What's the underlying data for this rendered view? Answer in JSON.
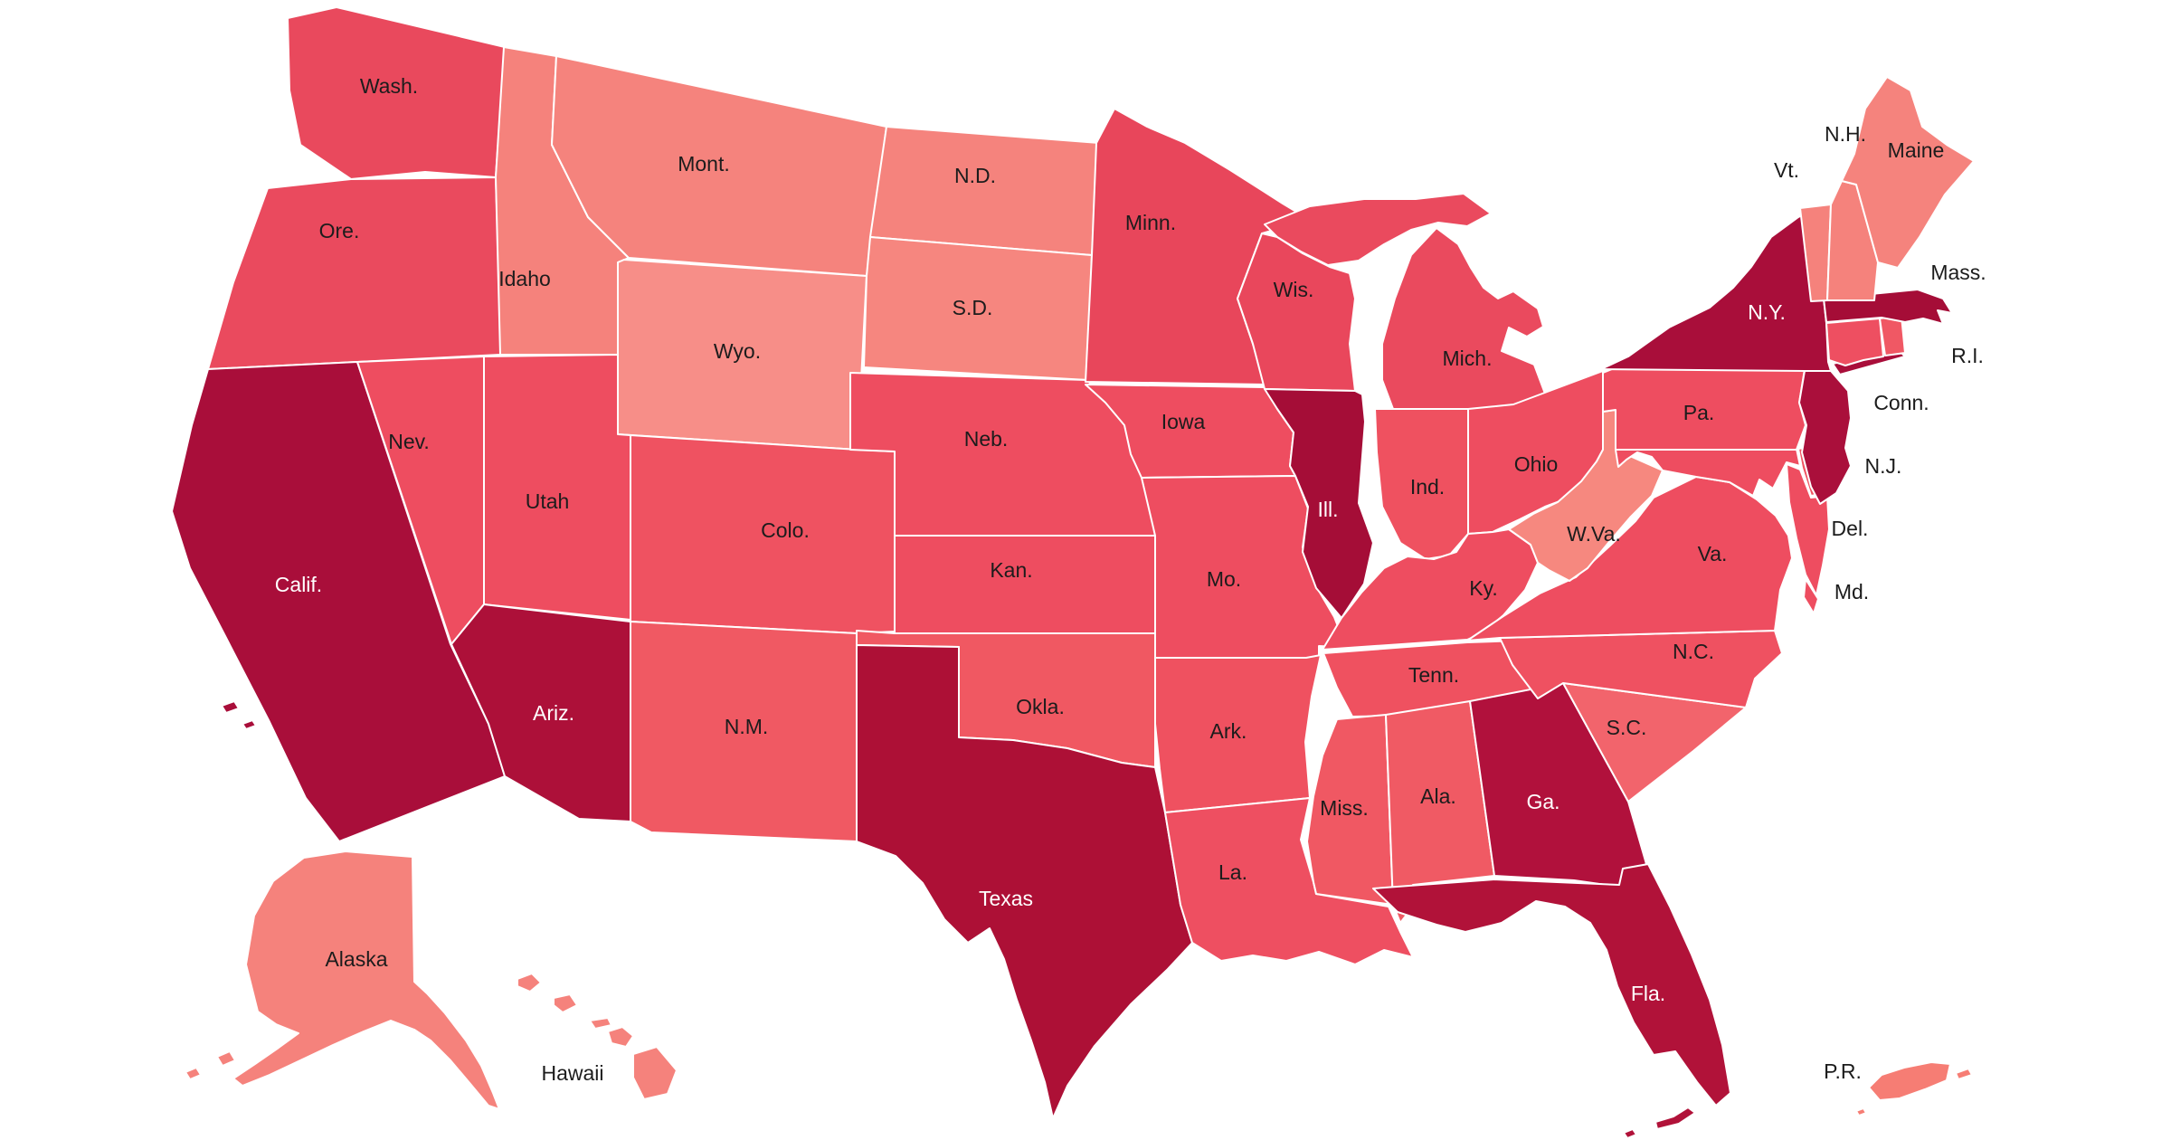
{
  "map": {
    "description": "United States choropleth map with state abbreviations",
    "background": "#ffffff",
    "state_border_color": "#ffffff",
    "shade_scale": {
      "lightest": "#f5827c",
      "medium": "#ee4d60",
      "darkest": "#ad1036"
    },
    "states": [
      {
        "id": "washington",
        "label": "Wash.",
        "fill": "#e9495d",
        "label_color": "#1c1c1c"
      },
      {
        "id": "oregon",
        "label": "Ore.",
        "fill": "#ea4a5e",
        "label_color": "#1c1c1c"
      },
      {
        "id": "california",
        "label": "Calif.",
        "fill": "#a90e3a",
        "label_color": "#ffffff"
      },
      {
        "id": "nevada",
        "label": "Nev.",
        "fill": "#ee4d60",
        "label_color": "#1c1c1c"
      },
      {
        "id": "idaho",
        "label": "Idaho",
        "fill": "#f5827c",
        "label_color": "#1c1c1c"
      },
      {
        "id": "montana",
        "label": "Mont.",
        "fill": "#f5837d",
        "label_color": "#1c1c1c"
      },
      {
        "id": "wyoming",
        "label": "Wyo.",
        "fill": "#f78e88",
        "label_color": "#1c1c1c"
      },
      {
        "id": "utah",
        "label": "Utah",
        "fill": "#ee4d60",
        "label_color": "#1c1c1c"
      },
      {
        "id": "colorado",
        "label": "Colo.",
        "fill": "#ef5261",
        "label_color": "#1c1c1c"
      },
      {
        "id": "arizona",
        "label": "Ariz.",
        "fill": "#ad1039",
        "label_color": "#ffffff"
      },
      {
        "id": "new-mexico",
        "label": "N.M.",
        "fill": "#f05963",
        "label_color": "#1c1c1c"
      },
      {
        "id": "north-dakota",
        "label": "N.D.",
        "fill": "#f5837d",
        "label_color": "#1c1c1c"
      },
      {
        "id": "south-dakota",
        "label": "S.D.",
        "fill": "#f6867f",
        "label_color": "#1c1c1c"
      },
      {
        "id": "nebraska",
        "label": "Neb.",
        "fill": "#ee4d60",
        "label_color": "#1c1c1c"
      },
      {
        "id": "kansas",
        "label": "Kan.",
        "fill": "#ee4d60",
        "label_color": "#1c1c1c"
      },
      {
        "id": "oklahoma",
        "label": "Okla.",
        "fill": "#f05862",
        "label_color": "#1c1c1c"
      },
      {
        "id": "texas",
        "label": "Texas",
        "fill": "#ad1036",
        "label_color": "#ffffff"
      },
      {
        "id": "minnesota",
        "label": "Minn.",
        "fill": "#e8465b",
        "label_color": "#1c1c1c"
      },
      {
        "id": "iowa",
        "label": "Iowa",
        "fill": "#ee4d60",
        "label_color": "#1c1c1c"
      },
      {
        "id": "missouri",
        "label": "Mo.",
        "fill": "#ee4d60",
        "label_color": "#1c1c1c"
      },
      {
        "id": "arkansas",
        "label": "Ark.",
        "fill": "#ef5160",
        "label_color": "#1c1c1c"
      },
      {
        "id": "louisiana",
        "label": "La.",
        "fill": "#ee4f61",
        "label_color": "#1c1c1c"
      },
      {
        "id": "wisconsin",
        "label": "Wis.",
        "fill": "#e9475c",
        "label_color": "#1c1c1c"
      },
      {
        "id": "illinois",
        "label": "Ill.",
        "fill": "#a50d37",
        "label_color": "#ffffff"
      },
      {
        "id": "michigan",
        "label": "Mich.",
        "fill": "#ea4a5e",
        "label_color": "#1c1c1c"
      },
      {
        "id": "indiana",
        "label": "Ind.",
        "fill": "#ef5160",
        "label_color": "#1c1c1c"
      },
      {
        "id": "ohio",
        "label": "Ohio",
        "fill": "#ee4d60",
        "label_color": "#1c1c1c"
      },
      {
        "id": "kentucky",
        "label": "Ky.",
        "fill": "#ee4d60",
        "label_color": "#1c1c1c"
      },
      {
        "id": "tennessee",
        "label": "Tenn.",
        "fill": "#ef5160",
        "label_color": "#1c1c1c"
      },
      {
        "id": "mississippi",
        "label": "Miss.",
        "fill": "#f05863",
        "label_color": "#1c1c1c"
      },
      {
        "id": "alabama",
        "label": "Ala.",
        "fill": "#f05a64",
        "label_color": "#1c1c1c"
      },
      {
        "id": "georgia",
        "label": "Ga.",
        "fill": "#b1113c",
        "label_color": "#ffffff"
      },
      {
        "id": "florida",
        "label": "Fla.",
        "fill": "#b11239",
        "label_color": "#ffffff"
      },
      {
        "id": "south-carolina",
        "label": "S.C.",
        "fill": "#f2646c",
        "label_color": "#1c1c1c"
      },
      {
        "id": "north-carolina",
        "label": "N.C.",
        "fill": "#ef5161",
        "label_color": "#1c1c1c"
      },
      {
        "id": "virginia",
        "label": "Va.",
        "fill": "#ee4d60",
        "label_color": "#1c1c1c"
      },
      {
        "id": "west-virginia",
        "label": "W.Va.",
        "fill": "#f6887f",
        "label_color": "#1c1c1c"
      },
      {
        "id": "maryland",
        "label": "Md.",
        "fill": "#ee4d60",
        "label_color": "#1c1c1c"
      },
      {
        "id": "delaware",
        "label": "Del.",
        "fill": "#ef5462",
        "label_color": "#1c1c1c"
      },
      {
        "id": "pennsylvania",
        "label": "Pa.",
        "fill": "#ee4d60",
        "label_color": "#1c1c1c"
      },
      {
        "id": "new-jersey",
        "label": "N.J.",
        "fill": "#aa0f3b",
        "label_color": "#1c1c1c"
      },
      {
        "id": "new-york",
        "label": "N.Y.",
        "fill": "#a90e3a",
        "label_color": "#ffffff"
      },
      {
        "id": "connecticut",
        "label": "Conn.",
        "fill": "#ee4f61",
        "label_color": "#1c1c1c"
      },
      {
        "id": "rhode-island",
        "label": "R.I.",
        "fill": "#f05864",
        "label_color": "#1c1c1c"
      },
      {
        "id": "massachusetts",
        "label": "Mass.",
        "fill": "#a50d37",
        "label_color": "#1c1c1c"
      },
      {
        "id": "vermont",
        "label": "Vt.",
        "fill": "#f5827c",
        "label_color": "#1c1c1c"
      },
      {
        "id": "new-hampshire",
        "label": "N.H.",
        "fill": "#f5827c",
        "label_color": "#1c1c1c"
      },
      {
        "id": "maine",
        "label": "Maine",
        "fill": "#f5837d",
        "label_color": "#1c1c1c"
      },
      {
        "id": "alaska",
        "label": "Alaska",
        "fill": "#f5827c",
        "label_color": "#1c1c1c"
      },
      {
        "id": "hawaii",
        "label": "Hawaii",
        "fill": "#f5827c",
        "label_color": "#1c1c1c"
      },
      {
        "id": "puerto-rico",
        "label": "P.R.",
        "fill": "#f67d74",
        "label_color": "#1c1c1c"
      }
    ]
  }
}
